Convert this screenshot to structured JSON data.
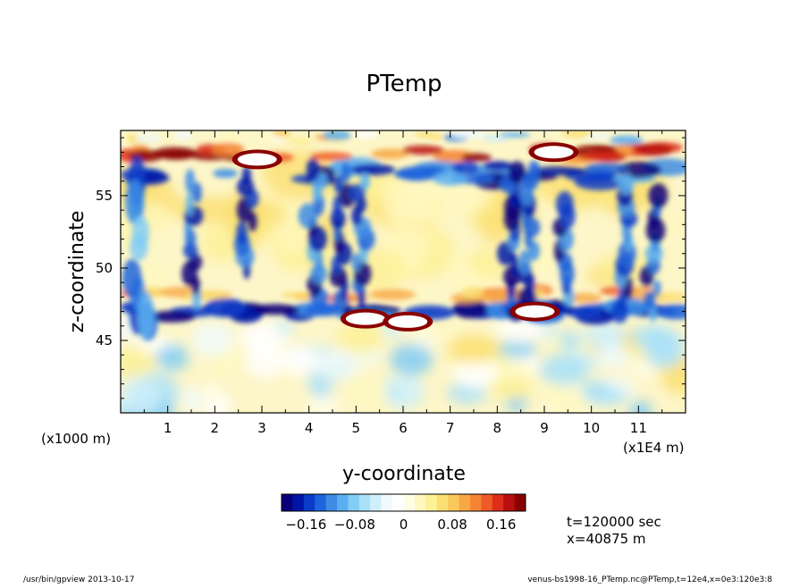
{
  "chart_data": {
    "type": "heatmap",
    "title": "PTemp",
    "xlabel": "y-coordinate",
    "ylabel": "z-coordinate",
    "x_unit": "(x1E4 m)",
    "y_unit": "(x1000 m)",
    "xlim": [
      0,
      12
    ],
    "ylim": [
      40,
      59.5
    ],
    "x_ticks": [
      "1",
      "2",
      "3",
      "4",
      "5",
      "6",
      "7",
      "8",
      "9",
      "10",
      "11"
    ],
    "y_ticks": [
      "45",
      "50",
      "55"
    ],
    "colorbar": {
      "range": [
        -0.2,
        0.2
      ],
      "ticks": [
        "-0.16",
        "-0.08",
        "0",
        "0.08",
        "0.16"
      ],
      "colors": [
        "#08007a",
        "#0014a8",
        "#0a3cc8",
        "#1e64dc",
        "#3c8ce6",
        "#5aaff0",
        "#82cdf5",
        "#aae1f8",
        "#cff0fa",
        "#f0fafc",
        "#ffffff",
        "#fffde6",
        "#fff8bf",
        "#fdf095",
        "#fbdf72",
        "#f9c85a",
        "#f7a845",
        "#f58434",
        "#ef5a26",
        "#dd2e1a",
        "#b80f10",
        "#8a0000"
      ]
    },
    "features": [
      {
        "y": 5.2,
        "z": 46.5,
        "value": 0.2,
        "name": "warm-anomaly"
      },
      {
        "y": 6.1,
        "z": 46.3,
        "value": 0.2,
        "name": "warm-anomaly"
      },
      {
        "y": 8.8,
        "z": 47.0,
        "value": 0.2,
        "name": "warm-anomaly"
      },
      {
        "y": 9.2,
        "z": 58.0,
        "value": 0.2,
        "name": "warm-anomaly"
      },
      {
        "y": 2.9,
        "z": 57.5,
        "value": 0.2,
        "name": "warm-anomaly"
      },
      {
        "y": 4.7,
        "z": 52.0,
        "value": -0.16,
        "name": "cold-plume"
      },
      {
        "y": 8.5,
        "z": 53.0,
        "value": -0.16,
        "name": "cold-plume"
      },
      {
        "y": 11.2,
        "z": 52.0,
        "value": -0.12,
        "name": "cold-plume"
      }
    ]
  },
  "annotations": {
    "time": "t=120000 sec",
    "position": "x=40875 m"
  },
  "footer": {
    "left": "/usr/bin/gpview  2013-10-17",
    "right": "venus-bs1998-16_PTemp.nc@PTemp,t=12e4,x=0e3:120e3:8"
  }
}
